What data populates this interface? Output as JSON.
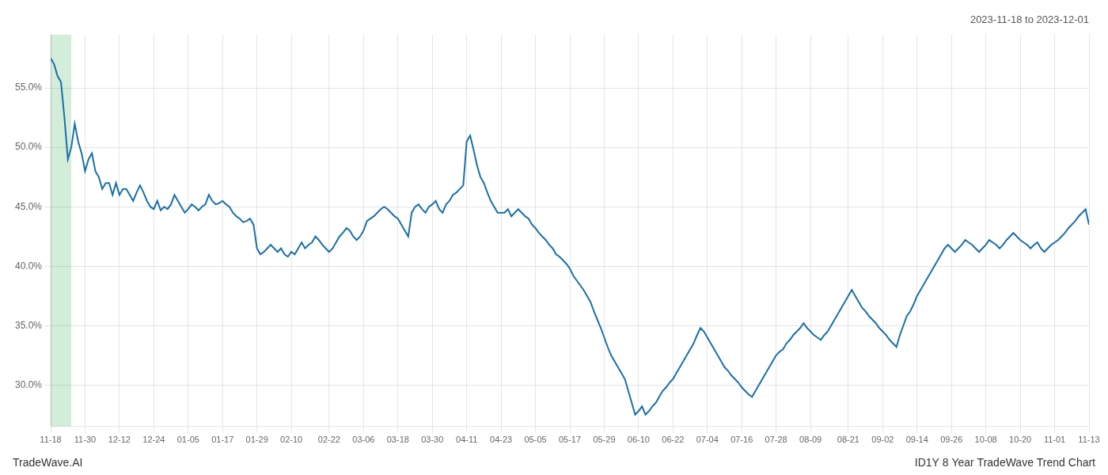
{
  "chart_data": {
    "type": "line",
    "title": "2023-11-18 to 2023-12-01",
    "annotations": [
      "TradeWave.AI",
      "ID1Y 8 Year TradeWave Trend Chart"
    ],
    "color": "#1a6fa8",
    "grid": true,
    "highlight": {
      "start": 0,
      "end": 6,
      "color": "#d4edda"
    },
    "ylim": [
      0.265,
      0.595
    ],
    "yticks": [
      {
        "value": 0.3,
        "label": "30.0%"
      },
      {
        "value": 0.35,
        "label": "35.0%"
      },
      {
        "value": 0.4,
        "label": "40.0%"
      },
      {
        "value": 0.45,
        "label": "45.0%"
      },
      {
        "value": 0.5,
        "label": "50.0%"
      },
      {
        "value": 0.55,
        "label": "55.0%"
      }
    ],
    "categories": [
      "11-18",
      null,
      null,
      null,
      null,
      null,
      null,
      null,
      null,
      null,
      "11-30",
      null,
      null,
      null,
      null,
      null,
      null,
      null,
      null,
      null,
      "12-12",
      null,
      null,
      null,
      null,
      null,
      null,
      null,
      null,
      null,
      "12-24",
      null,
      null,
      null,
      null,
      null,
      null,
      null,
      null,
      null,
      "01-05",
      null,
      null,
      null,
      null,
      null,
      null,
      null,
      null,
      null,
      "01-17",
      null,
      null,
      null,
      null,
      null,
      null,
      null,
      null,
      null,
      "01-29",
      null,
      null,
      null,
      null,
      null,
      null,
      null,
      null,
      null,
      "02-10",
      null,
      null,
      null,
      null,
      null,
      null,
      null,
      null,
      null,
      null,
      "02-22",
      null,
      null,
      null,
      null,
      null,
      null,
      null,
      null,
      null,
      "03-06",
      null,
      null,
      null,
      null,
      null,
      null,
      null,
      null,
      null,
      "03-18",
      null,
      null,
      null,
      null,
      null,
      null,
      null,
      null,
      null,
      "03-30",
      null,
      null,
      null,
      null,
      null,
      null,
      null,
      null,
      null,
      "04-11",
      null,
      null,
      null,
      null,
      null,
      null,
      null,
      null,
      null,
      "04-23",
      null,
      null,
      null,
      null,
      null,
      null,
      null,
      null,
      null,
      "05-05",
      null,
      null,
      null,
      null,
      null,
      null,
      null,
      null,
      null,
      "05-17",
      null,
      null,
      null,
      null,
      null,
      null,
      null,
      null,
      null,
      "05-29",
      null,
      null,
      null,
      null,
      null,
      null,
      null,
      null,
      null,
      "06-10",
      null,
      null,
      null,
      null,
      null,
      null,
      null,
      null,
      null,
      "06-22",
      null,
      null,
      null,
      null,
      null,
      null,
      null,
      null,
      null,
      "07-04",
      null,
      null,
      null,
      null,
      null,
      null,
      null,
      null,
      null,
      "07-16",
      null,
      null,
      null,
      null,
      null,
      null,
      null,
      null,
      null,
      "07-28",
      null,
      null,
      null,
      null,
      null,
      null,
      null,
      null,
      null,
      "08-09",
      null,
      null,
      null,
      null,
      null,
      null,
      null,
      null,
      null,
      null,
      "08-21",
      null,
      null,
      null,
      null,
      null,
      null,
      null,
      null,
      null,
      "09-02",
      null,
      null,
      null,
      null,
      null,
      null,
      null,
      null,
      null,
      "09-14",
      null,
      null,
      null,
      null,
      null,
      null,
      null,
      null,
      null,
      "09-26",
      null,
      null,
      null,
      null,
      null,
      null,
      null,
      null,
      null,
      "10-08",
      null,
      null,
      null,
      null,
      null,
      null,
      null,
      null,
      null,
      "10-20",
      null,
      null,
      null,
      null,
      null,
      null,
      null,
      null,
      null,
      "11-01",
      null,
      null,
      null,
      null,
      null,
      null,
      null,
      null,
      null,
      "11-13"
    ],
    "values": [
      0.575,
      0.57,
      0.56,
      0.555,
      0.525,
      0.49,
      0.5,
      0.52,
      0.505,
      0.495,
      0.48,
      0.49,
      0.495,
      0.48,
      0.475,
      0.465,
      0.47,
      0.47,
      0.46,
      0.47,
      0.46,
      0.465,
      0.465,
      0.46,
      0.455,
      0.462,
      0.468,
      0.462,
      0.455,
      0.45,
      0.448,
      0.455,
      0.447,
      0.45,
      0.448,
      0.452,
      0.46,
      0.455,
      0.45,
      0.445,
      0.448,
      0.452,
      0.45,
      0.447,
      0.45,
      0.452,
      0.46,
      0.455,
      0.452,
      0.453,
      0.455,
      0.452,
      0.45,
      0.445,
      0.442,
      0.44,
      0.437,
      0.438,
      0.44,
      0.435,
      0.415,
      0.41,
      0.412,
      0.415,
      0.418,
      0.415,
      0.412,
      0.415,
      0.41,
      0.408,
      0.412,
      0.41,
      0.415,
      0.42,
      0.415,
      0.418,
      0.42,
      0.425,
      0.422,
      0.418,
      0.415,
      0.412,
      0.415,
      0.42,
      0.425,
      0.428,
      0.432,
      0.43,
      0.425,
      0.422,
      0.425,
      0.43,
      0.438,
      0.44,
      0.442,
      0.445,
      0.448,
      0.45,
      0.448,
      0.445,
      0.442,
      0.44,
      0.435,
      0.43,
      0.425,
      0.445,
      0.45,
      0.452,
      0.448,
      0.445,
      0.45,
      0.452,
      0.455,
      0.448,
      0.445,
      0.452,
      0.455,
      0.46,
      0.462,
      0.465,
      0.468,
      0.505,
      0.51,
      0.498,
      0.485,
      0.475,
      0.47,
      0.462,
      0.455,
      0.45,
      0.445,
      0.445,
      0.445,
      0.448,
      0.442,
      0.445,
      0.448,
      0.445,
      0.442,
      0.44,
      0.435,
      0.432,
      0.428,
      0.425,
      0.422,
      0.418,
      0.415,
      0.41,
      0.408,
      0.405,
      0.402,
      0.398,
      0.392,
      0.388,
      0.384,
      0.38,
      0.375,
      0.37,
      0.362,
      0.355,
      0.348,
      0.34,
      0.332,
      0.325,
      0.32,
      0.315,
      0.31,
      0.305,
      0.295,
      0.285,
      0.275,
      0.278,
      0.282,
      0.275,
      0.278,
      0.282,
      0.285,
      0.29,
      0.295,
      0.298,
      0.302,
      0.305,
      0.31,
      0.315,
      0.32,
      0.325,
      0.33,
      0.335,
      0.342,
      0.348,
      0.345,
      0.34,
      0.335,
      0.33,
      0.325,
      0.32,
      0.315,
      0.312,
      0.308,
      0.305,
      0.302,
      0.298,
      0.295,
      0.292,
      0.29,
      0.295,
      0.3,
      0.305,
      0.31,
      0.315,
      0.32,
      0.325,
      0.328,
      0.33,
      0.335,
      0.338,
      0.342,
      0.345,
      0.348,
      0.352,
      0.348,
      0.345,
      0.342,
      0.34,
      0.338,
      0.342,
      0.345,
      0.35,
      0.355,
      0.36,
      0.365,
      0.37,
      0.375,
      0.38,
      0.375,
      0.37,
      0.365,
      0.362,
      0.358,
      0.355,
      0.352,
      0.348,
      0.345,
      0.342,
      0.338,
      0.335,
      0.332,
      0.342,
      0.35,
      0.358,
      0.362,
      0.368,
      0.375,
      0.38,
      0.385,
      0.39,
      0.395,
      0.4,
      0.405,
      0.41,
      0.415,
      0.418,
      0.415,
      0.412,
      0.415,
      0.418,
      0.422,
      0.42,
      0.418,
      0.415,
      0.412,
      0.415,
      0.418,
      0.422,
      0.42,
      0.418,
      0.415,
      0.418,
      0.422,
      0.425,
      0.428,
      0.425,
      0.422,
      0.42,
      0.418,
      0.415,
      0.418,
      0.42,
      0.415,
      0.412,
      0.415,
      0.418,
      0.42,
      0.422,
      0.425,
      0.428,
      0.432,
      0.435,
      0.438,
      0.442,
      0.445,
      0.448,
      0.435
    ]
  }
}
